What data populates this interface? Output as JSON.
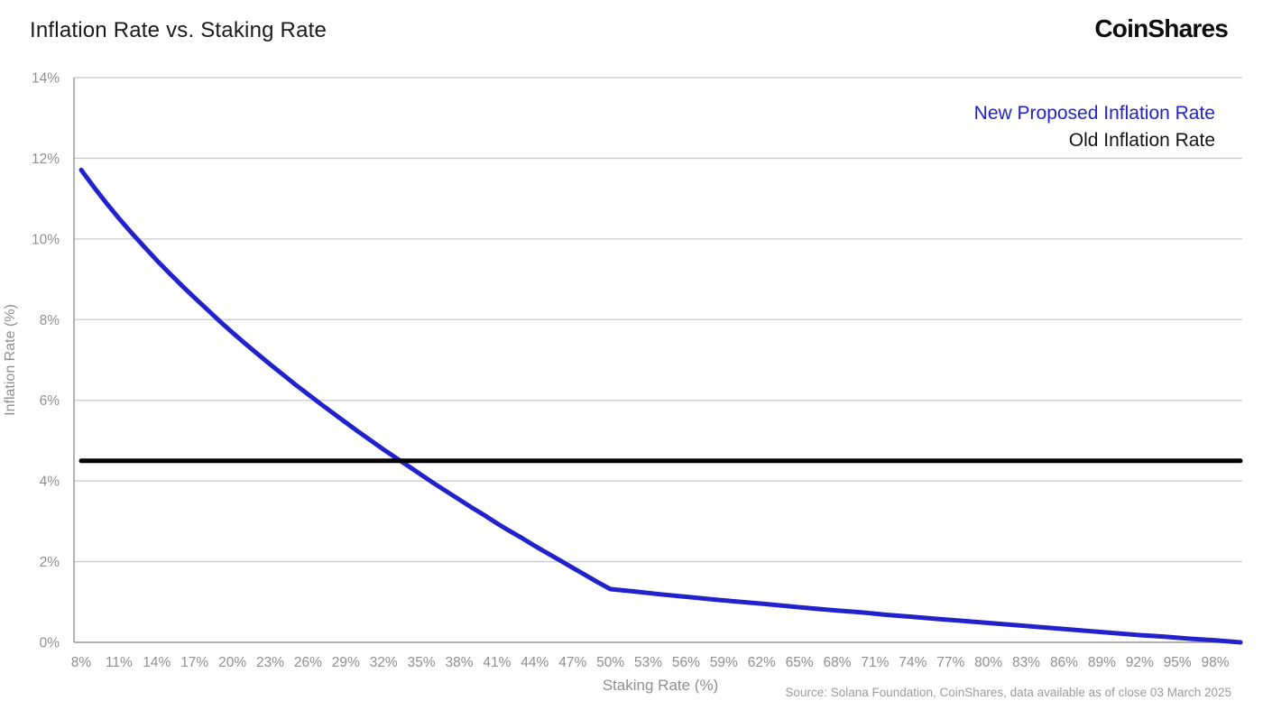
{
  "header": {
    "title": "Inflation Rate vs. Staking Rate",
    "logo_text": "CoinShares"
  },
  "legend": [
    {
      "label": "New Proposed Inflation Rate",
      "color": "#2222cd"
    },
    {
      "label": "Old Inflation Rate",
      "color": "#141414"
    }
  ],
  "axes": {
    "y": {
      "title": "Inflation Rate (%)",
      "tick_values": [
        0,
        2,
        4,
        6,
        8,
        10,
        12,
        14
      ],
      "tick_labels": [
        "0%",
        "2%",
        "4%",
        "6%",
        "8%",
        "10%",
        "12%",
        "14%"
      ]
    },
    "x": {
      "title": "Staking Rate (%)",
      "tick_values": [
        8,
        11,
        14,
        17,
        20,
        23,
        26,
        29,
        32,
        35,
        38,
        41,
        44,
        47,
        50,
        53,
        56,
        59,
        62,
        65,
        68,
        71,
        74,
        77,
        80,
        83,
        86,
        89,
        92,
        95,
        98
      ],
      "tick_labels": [
        "8%",
        "11%",
        "14%",
        "17%",
        "20%",
        "23%",
        "26%",
        "29%",
        "32%",
        "35%",
        "38%",
        "41%",
        "44%",
        "47%",
        "50%",
        "53%",
        "56%",
        "59%",
        "62%",
        "65%",
        "68%",
        "71%",
        "74%",
        "77%",
        "80%",
        "83%",
        "86%",
        "89%",
        "92%",
        "95%",
        "98%"
      ]
    }
  },
  "source": "Source: Solana Foundation, CoinShares, data available as of close 03 March 2025",
  "chart_data": {
    "type": "line",
    "title": "Inflation Rate vs. Staking Rate",
    "xlabel": "Staking Rate (%)",
    "ylabel": "Inflation Rate (%)",
    "xlim": [
      8,
      100
    ],
    "ylim": [
      0,
      14
    ],
    "grid": "horizontal",
    "legend_position": "top-right",
    "colors": {
      "gridline": "#c9c9c9",
      "axis_line": "#9a9a9a",
      "tick_label": "#8f8f8f"
    },
    "series": [
      {
        "name": "New Proposed Inflation Rate",
        "color": "#2222cd",
        "line_width": 5,
        "x": [
          8,
          9,
          10,
          11,
          12,
          13,
          14,
          15,
          16,
          17,
          18,
          19,
          20,
          21,
          22,
          23,
          24,
          25,
          26,
          27,
          28,
          29,
          30,
          31,
          32,
          33,
          34,
          35,
          36,
          37,
          38,
          39,
          40,
          41,
          42,
          43,
          44,
          45,
          46,
          47,
          48,
          49,
          50,
          52,
          54,
          56,
          58,
          60,
          62,
          64,
          66,
          68,
          70,
          72,
          74,
          76,
          78,
          80,
          82,
          84,
          86,
          88,
          90,
          92,
          94,
          96,
          98,
          100
        ],
        "y": [
          11.71,
          11.29,
          10.89,
          10.51,
          10.15,
          9.81,
          9.47,
          9.15,
          8.84,
          8.54,
          8.25,
          7.96,
          7.68,
          7.41,
          7.15,
          6.89,
          6.64,
          6.39,
          6.15,
          5.91,
          5.68,
          5.45,
          5.22,
          5.0,
          4.78,
          4.57,
          4.36,
          4.15,
          3.94,
          3.74,
          3.54,
          3.34,
          3.15,
          2.95,
          2.76,
          2.58,
          2.39,
          2.21,
          2.03,
          1.85,
          1.67,
          1.49,
          1.32,
          1.26,
          1.19,
          1.13,
          1.07,
          1.01,
          0.96,
          0.9,
          0.84,
          0.79,
          0.74,
          0.68,
          0.63,
          0.58,
          0.53,
          0.48,
          0.43,
          0.38,
          0.33,
          0.28,
          0.23,
          0.18,
          0.14,
          0.09,
          0.05,
          0.0
        ]
      },
      {
        "name": "Old Inflation Rate",
        "color": "#000000",
        "line_width": 5,
        "x": [
          8,
          100
        ],
        "y": [
          4.5,
          4.5
        ]
      }
    ]
  }
}
